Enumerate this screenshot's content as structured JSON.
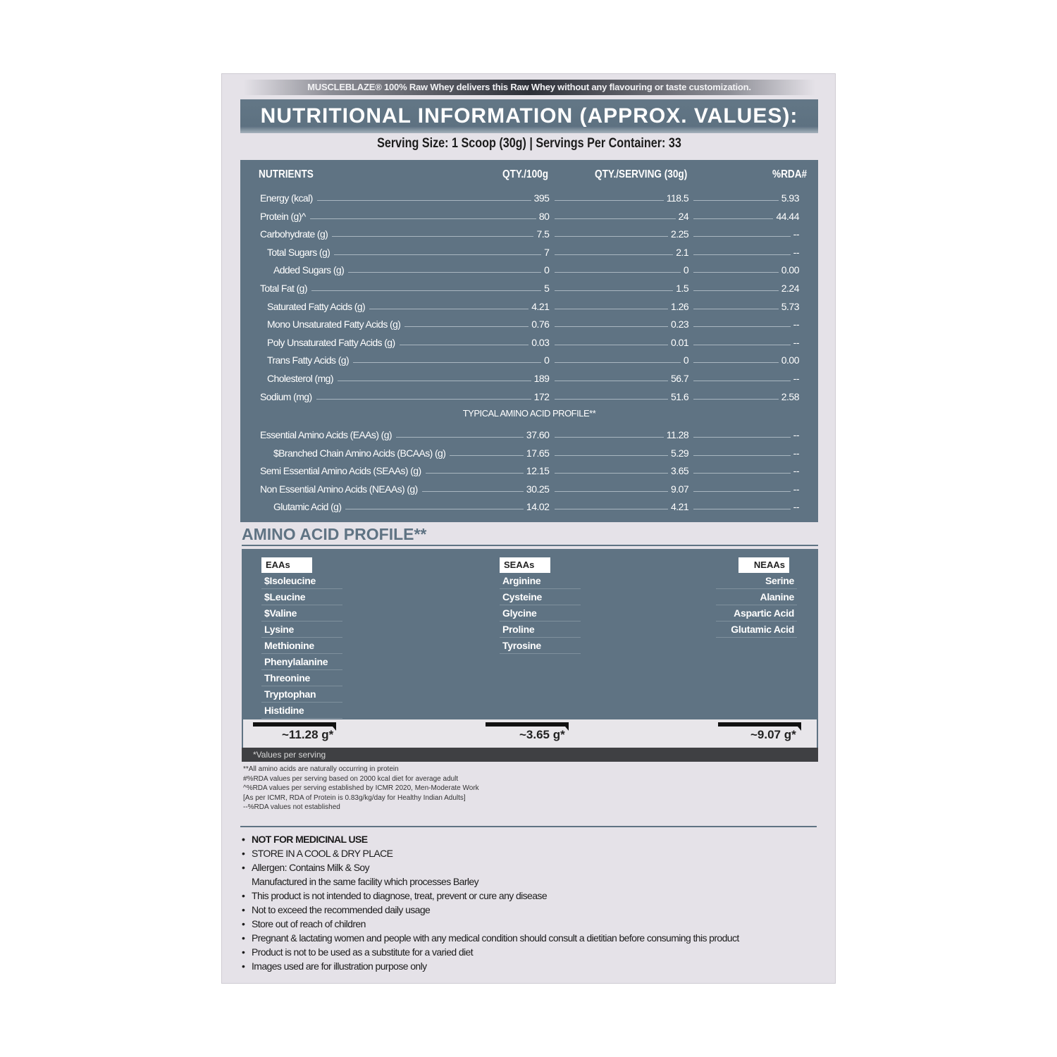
{
  "tagline": "MUSCLEBLAZE® 100% Raw Whey delivers this Raw Whey without any flavouring or taste customization.",
  "title": "NUTRITIONAL INFORMATION (APPROX. VALUES):",
  "serving": "Serving Size: 1 Scoop (30g)  |  Servings Per Container: 33",
  "colors": {
    "panel": "#e5e2e8",
    "table": "#5f7383",
    "dark_strip": "#3f4043"
  },
  "table": {
    "headers": [
      "NUTRIENTS",
      "QTY./100g",
      "QTY./SERVING (30g)",
      "%RDA#"
    ],
    "rows": [
      {
        "name": "Energy (kcal)",
        "indent": 0,
        "per100": "395",
        "serving": "118.5",
        "rda": "5.93"
      },
      {
        "name": "Protein (g)^",
        "indent": 0,
        "per100": "80",
        "serving": "24",
        "rda": "44.44"
      },
      {
        "name": "Carbohydrate (g)",
        "indent": 0,
        "per100": "7.5",
        "serving": "2.25",
        "rda": "--"
      },
      {
        "name": "Total Sugars (g)",
        "indent": 1,
        "per100": "7",
        "serving": "2.1",
        "rda": "--"
      },
      {
        "name": "Added Sugars (g)",
        "indent": 2,
        "per100": "0",
        "serving": "0",
        "rda": "0.00"
      },
      {
        "name": "Total Fat (g)",
        "indent": 0,
        "per100": "5",
        "serving": "1.5",
        "rda": "2.24"
      },
      {
        "name": "Saturated Fatty Acids (g)",
        "indent": 1,
        "per100": "4.21",
        "serving": "1.26",
        "rda": "5.73"
      },
      {
        "name": "Mono Unsaturated Fatty Acids (g)",
        "indent": 1,
        "per100": "0.76",
        "serving": "0.23",
        "rda": "--"
      },
      {
        "name": "Poly Unsaturated Fatty Acids (g)",
        "indent": 1,
        "per100": "0.03",
        "serving": "0.01",
        "rda": "--"
      },
      {
        "name": "Trans Fatty Acids (g)",
        "indent": 1,
        "per100": "0",
        "serving": "0",
        "rda": "0.00"
      },
      {
        "name": "Cholesterol (mg)",
        "indent": 1,
        "per100": "189",
        "serving": "56.7",
        "rda": "--"
      },
      {
        "name": "Sodium (mg)",
        "indent": 0,
        "per100": "172",
        "serving": "51.6",
        "rda": "2.58"
      }
    ],
    "amino_subheading": "TYPICAL AMINO ACID PROFILE**",
    "amino_rows": [
      {
        "name": "Essential Amino Acids (EAAs) (g)",
        "indent": 0,
        "per100": "37.60",
        "serving": "11.28",
        "rda": "--"
      },
      {
        "name": "$Branched Chain Amino Acids (BCAAs) (g)",
        "indent": 2,
        "per100": "17.65",
        "serving": "5.29",
        "rda": "--"
      },
      {
        "name": "Semi Essential Amino Acids (SEAAs) (g)",
        "indent": 0,
        "per100": "12.15",
        "serving": "3.65",
        "rda": "--"
      },
      {
        "name": "Non Essential Amino Acids (NEAAs) (g)",
        "indent": 0,
        "per100": "30.25",
        "serving": "9.07",
        "rda": "--"
      },
      {
        "name": "Glutamic Acid (g)",
        "indent": 2,
        "per100": "14.02",
        "serving": "4.21",
        "rda": "--"
      }
    ]
  },
  "amino_profile": {
    "heading": "AMINO ACID PROFILE**",
    "groups": [
      {
        "label": "EAAs",
        "items": [
          "$Isoleucine",
          "$Leucine",
          "$Valine",
          "Lysine",
          "Methionine",
          "Phenylalanine",
          "Threonine",
          "Tryptophan",
          "Histidine"
        ],
        "total": "~11.28 g*"
      },
      {
        "label": "SEAAs",
        "items": [
          "Arginine",
          "Cysteine",
          "Glycine",
          "Proline",
          "Tyrosine"
        ],
        "total": "~3.65 g*"
      },
      {
        "label": "NEAAs",
        "items": [
          "Serine",
          "Alanine",
          "Aspartic Acid",
          "Glutamic Acid"
        ],
        "total": "~9.07 g*"
      }
    ],
    "footer": "*Values per serving"
  },
  "footnotes": [
    "**All amino acids are naturally occurring in protein",
    "#%RDA values per serving based on 2000 kcal diet for average adult",
    "^%RDA values per serving established by ICMR 2020, Men-Moderate Work",
    "[As per ICMR, RDA of Protein is 0.83g/kg/day for Healthy Indian Adults]",
    "--%RDA values not established"
  ],
  "bullets": [
    {
      "text": "NOT FOR MEDICINAL USE",
      "bullet": true,
      "bold": true
    },
    {
      "text": "STORE IN A COOL & DRY PLACE",
      "bullet": true,
      "bold": false
    },
    {
      "text": "Allergen: Contains Milk & Soy",
      "bullet": true,
      "bold": false
    },
    {
      "text": "Manufactured in the same facility which processes Barley",
      "bullet": false,
      "bold": false
    },
    {
      "text": "This product is not intended to diagnose, treat, prevent or cure any disease",
      "bullet": true,
      "bold": false
    },
    {
      "text": "Not to exceed the recommended daily usage",
      "bullet": true,
      "bold": false
    },
    {
      "text": "Store out of reach of children",
      "bullet": true,
      "bold": false
    },
    {
      "text": "Pregnant & lactating women and people with any medical condition should consult a dietitian before consuming this product",
      "bullet": true,
      "bold": false
    },
    {
      "text": "Product is not to be used as a substitute for a varied diet",
      "bullet": true,
      "bold": false
    },
    {
      "text": "Images used are for illustration purpose only",
      "bullet": true,
      "bold": false
    }
  ]
}
